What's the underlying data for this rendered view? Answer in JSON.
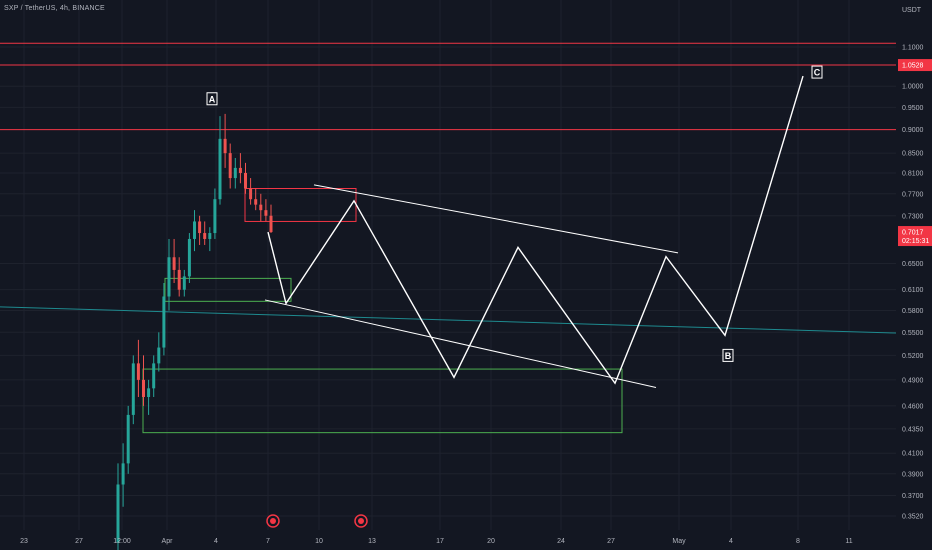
{
  "header": {
    "title": "SXP / TetherUS, 4h, BINANCE"
  },
  "chart_data": {
    "type": "candlestick",
    "symbol": "SXP / TetherUS",
    "interval": "4h",
    "exchange": "BINANCE",
    "currency_label": "USDT",
    "y_ticks": [
      "1.1000",
      "1.0000",
      "0.9500",
      "0.9000",
      "0.8500",
      "0.8100",
      "0.7700",
      "0.7300",
      "0.6500",
      "0.6100",
      "0.5800",
      "0.5500",
      "0.5200",
      "0.4900",
      "0.4600",
      "0.4350",
      "0.4100",
      "0.3900",
      "0.3700",
      "0.3520"
    ],
    "x_ticks": [
      "23",
      "27",
      "12:00",
      "Apr",
      "4",
      "7",
      "10",
      "13",
      "17",
      "20",
      "24",
      "27",
      "May",
      "4",
      "8",
      "11"
    ],
    "price_tags": [
      {
        "value": "1.0528",
        "color": "#f23645"
      },
      {
        "value": "0.7017",
        "sub": "02:15:31",
        "color": "#f23645"
      }
    ],
    "horizontal_levels": [
      {
        "price": 1.11,
        "color": "#f23645"
      },
      {
        "price": 1.0528,
        "color": "#f23645"
      },
      {
        "price": 0.9,
        "color": "#f23645"
      }
    ],
    "wave_labels": [
      "A",
      "B",
      "C"
    ],
    "projection_path_prices": [
      0.7017,
      0.59,
      0.757,
      0.493,
      0.676,
      0.486,
      0.661,
      0.546,
      1.025
    ],
    "candles": [
      [
        0.33,
        0.4,
        0.31,
        0.38
      ],
      [
        0.38,
        0.42,
        0.36,
        0.4
      ],
      [
        0.4,
        0.46,
        0.39,
        0.45
      ],
      [
        0.45,
        0.52,
        0.44,
        0.51
      ],
      [
        0.51,
        0.54,
        0.47,
        0.49
      ],
      [
        0.49,
        0.52,
        0.46,
        0.47
      ],
      [
        0.47,
        0.49,
        0.45,
        0.48
      ],
      [
        0.48,
        0.52,
        0.47,
        0.51
      ],
      [
        0.51,
        0.55,
        0.5,
        0.53
      ],
      [
        0.53,
        0.62,
        0.52,
        0.6
      ],
      [
        0.6,
        0.69,
        0.58,
        0.66
      ],
      [
        0.66,
        0.69,
        0.62,
        0.64
      ],
      [
        0.64,
        0.66,
        0.6,
        0.61
      ],
      [
        0.61,
        0.64,
        0.6,
        0.63
      ],
      [
        0.63,
        0.7,
        0.62,
        0.69
      ],
      [
        0.69,
        0.74,
        0.67,
        0.72
      ],
      [
        0.72,
        0.73,
        0.68,
        0.7
      ],
      [
        0.7,
        0.72,
        0.68,
        0.69
      ],
      [
        0.69,
        0.71,
        0.67,
        0.7
      ],
      [
        0.7,
        0.78,
        0.69,
        0.76
      ],
      [
        0.76,
        0.93,
        0.75,
        0.88
      ],
      [
        0.88,
        0.935,
        0.82,
        0.85
      ],
      [
        0.85,
        0.87,
        0.78,
        0.8
      ],
      [
        0.8,
        0.84,
        0.78,
        0.82
      ],
      [
        0.82,
        0.85,
        0.79,
        0.81
      ],
      [
        0.81,
        0.83,
        0.77,
        0.78
      ],
      [
        0.78,
        0.8,
        0.75,
        0.76
      ],
      [
        0.76,
        0.78,
        0.74,
        0.75
      ],
      [
        0.75,
        0.77,
        0.72,
        0.74
      ],
      [
        0.74,
        0.76,
        0.72,
        0.73
      ],
      [
        0.73,
        0.75,
        0.7,
        0.7017
      ]
    ]
  }
}
